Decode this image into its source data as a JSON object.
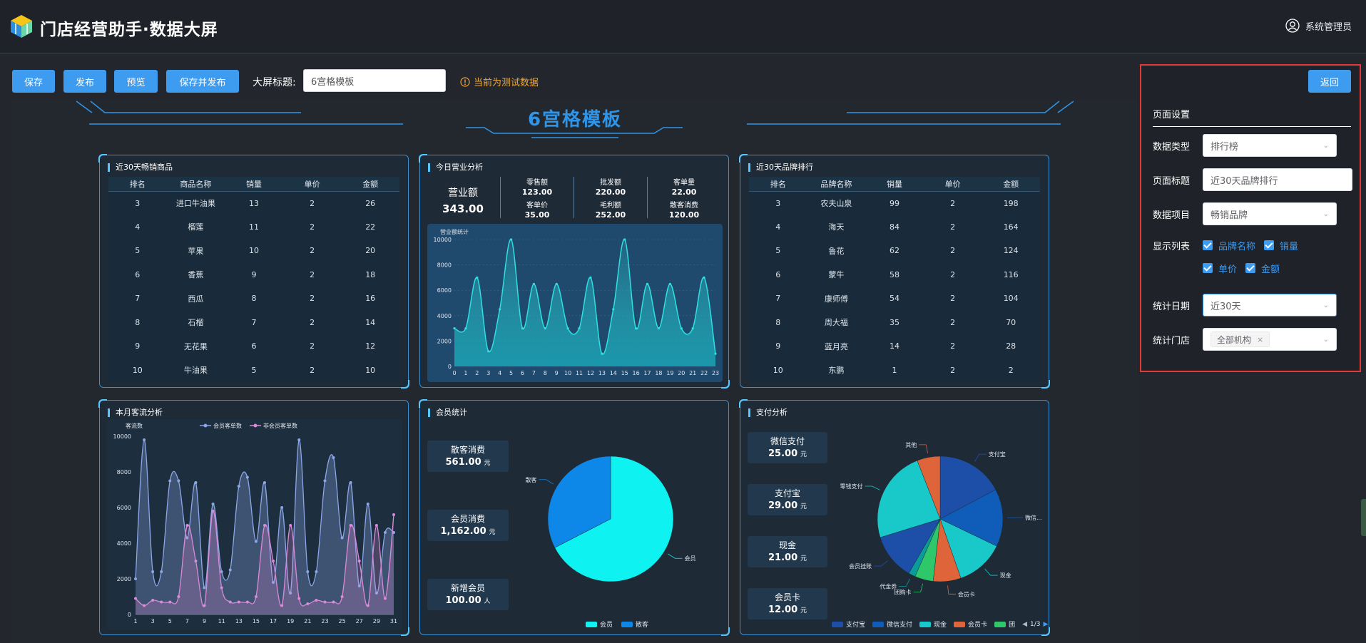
{
  "header": {
    "title": "门店经营助手·数据大屏",
    "user": "系统管理员"
  },
  "toolbar": {
    "buttons": [
      "保存",
      "发布",
      "预览",
      "保存并发布"
    ],
    "title_label": "大屏标题:",
    "title_value": "6宫格模板",
    "notice": "当前为测试数据"
  },
  "screen": {
    "title": "6宫格模板"
  },
  "panel_hot": {
    "title": "近30天畅销商品",
    "columns": [
      "排名",
      "商品名称",
      "销量",
      "单价",
      "金额"
    ],
    "rows": [
      [
        "3",
        "进口牛油果",
        "13",
        "2",
        "26"
      ],
      [
        "4",
        "榴莲",
        "11",
        "2",
        "22"
      ],
      [
        "5",
        "苹果",
        "10",
        "2",
        "20"
      ],
      [
        "6",
        "香蕉",
        "9",
        "2",
        "18"
      ],
      [
        "7",
        "西瓜",
        "8",
        "2",
        "16"
      ],
      [
        "8",
        "石榴",
        "7",
        "2",
        "14"
      ],
      [
        "9",
        "无花果",
        "6",
        "2",
        "12"
      ],
      [
        "10",
        "牛油果",
        "5",
        "2",
        "10"
      ]
    ]
  },
  "panel_revenue": {
    "title": "今日营业分析",
    "main_label": "营业额",
    "main_value": "343.00",
    "kpis": [
      {
        "label": "零售额",
        "value": "123.00"
      },
      {
        "label": "批发额",
        "value": "220.00"
      },
      {
        "label": "客单量",
        "value": "22.00"
      },
      {
        "label": "客单价",
        "value": "35.00"
      },
      {
        "label": "毛利额",
        "value": "252.00"
      },
      {
        "label": "散客消费",
        "value": "120.00"
      }
    ],
    "chart_title": "营业额统计"
  },
  "panel_brand": {
    "title": "近30天品牌排行",
    "columns": [
      "排名",
      "品牌名称",
      "销量",
      "单价",
      "金额"
    ],
    "rows": [
      [
        "3",
        "农夫山泉",
        "99",
        "2",
        "198"
      ],
      [
        "4",
        "海天",
        "84",
        "2",
        "164"
      ],
      [
        "5",
        "鲁花",
        "62",
        "2",
        "124"
      ],
      [
        "6",
        "蒙牛",
        "58",
        "2",
        "116"
      ],
      [
        "7",
        "康师傅",
        "54",
        "2",
        "104"
      ],
      [
        "8",
        "周大福",
        "35",
        "2",
        "70"
      ],
      [
        "9",
        "蓝月亮",
        "14",
        "2",
        "28"
      ],
      [
        "10",
        "东鹏",
        "1",
        "2",
        "2"
      ]
    ]
  },
  "panel_flow": {
    "title": "本月客流分析"
  },
  "panel_member": {
    "title": "会员统计",
    "cards": [
      {
        "label": "散客消费",
        "value": "561.00",
        "unit": "元"
      },
      {
        "label": "会员消费",
        "value": "1,162.00",
        "unit": "元"
      },
      {
        "label": "新增会员",
        "value": "100.00",
        "unit": "人"
      }
    ]
  },
  "panel_pay": {
    "title": "支付分析",
    "cards": [
      {
        "label": "微信支付",
        "value": "25.00",
        "unit": "元"
      },
      {
        "label": "支付宝",
        "value": "29.00",
        "unit": "元"
      },
      {
        "label": "现金",
        "value": "21.00",
        "unit": "元"
      },
      {
        "label": "会员卡",
        "value": "12.00",
        "unit": "元"
      }
    ],
    "legend_page": "1/3"
  },
  "chart_data": [
    {
      "type": "line",
      "title": "营业额统计",
      "x": [
        0,
        1,
        2,
        3,
        4,
        5,
        6,
        7,
        8,
        9,
        10,
        11,
        12,
        13,
        14,
        15,
        16,
        17,
        18,
        19,
        20,
        21,
        22,
        23
      ],
      "series": [
        {
          "values": [
            3000,
            3000,
            7000,
            1200,
            4500,
            10000,
            3000,
            6500,
            3000,
            6500,
            3000,
            3000,
            7000,
            1000,
            4500,
            10000,
            3000,
            6500,
            3000,
            6500,
            3000,
            3000,
            7000,
            1000
          ]
        }
      ],
      "ylim": [
        0,
        10000
      ],
      "yticks": [
        0,
        2000,
        4000,
        6000,
        8000,
        10000
      ],
      "color": "#2fe0e0"
    },
    {
      "type": "line",
      "ylabel": "客流数",
      "x": [
        1,
        2,
        3,
        4,
        5,
        6,
        7,
        8,
        9,
        10,
        11,
        12,
        13,
        14,
        15,
        16,
        17,
        18,
        19,
        20,
        21,
        22,
        23,
        24,
        25,
        26,
        27,
        28,
        29,
        30,
        31
      ],
      "xticks": [
        1,
        3,
        5,
        7,
        9,
        11,
        13,
        15,
        17,
        19,
        21,
        23,
        25,
        27,
        29,
        31
      ],
      "ylim": [
        0,
        10000
      ],
      "yticks": [
        0,
        2000,
        4000,
        6000,
        8000,
        10000
      ],
      "series": [
        {
          "name": "会员客单数",
          "color": "#8ba7e8",
          "values": [
            2000,
            9800,
            2400,
            2400,
            7500,
            7500,
            4300,
            7400,
            1500,
            6200,
            2400,
            2500,
            7200,
            7700,
            4100,
            7400,
            1800,
            6000,
            1200,
            9800,
            2400,
            2400,
            7500,
            8800,
            4300,
            7400,
            1600,
            6200,
            1200,
            4600,
            4600
          ]
        },
        {
          "name": "非会员客单数",
          "color": "#d98ad8",
          "values": [
            900,
            500,
            800,
            700,
            700,
            1000,
            5000,
            3000,
            500,
            5800,
            1500,
            700,
            700,
            700,
            1000,
            5000,
            3000,
            500,
            5000,
            900,
            600,
            800,
            700,
            700,
            1000,
            5000,
            3000,
            500,
            5000,
            900,
            5600
          ]
        }
      ]
    },
    {
      "type": "pie",
      "series": [
        {
          "name": "会员",
          "value": 1162,
          "color": "#0ff2f2"
        },
        {
          "name": "散客",
          "value": 561,
          "color": "#0d87e8"
        }
      ]
    },
    {
      "type": "pie",
      "series": [
        {
          "name": "支付宝",
          "value": 29,
          "color": "#1e4fa8"
        },
        {
          "name": "微信支付",
          "value": 25,
          "color": "#0f5db8"
        },
        {
          "name": "现金",
          "value": 21,
          "color": "#19c8c8"
        },
        {
          "name": "会员卡",
          "value": 12,
          "color": "#e0643a"
        },
        {
          "name": "代金券",
          "value": 8,
          "color": "#2ec86a"
        },
        {
          "name": "团购卡",
          "value": 3,
          "color": "#0a9b9b"
        },
        {
          "name": "会员挂账",
          "value": 20,
          "color": "#1e4fa8"
        },
        {
          "name": "零钱支付",
          "value": 40,
          "color": "#19c8c8"
        },
        {
          "name": "其他",
          "value": 10,
          "color": "#e0643a"
        }
      ],
      "labels_shown": [
        "支付宝",
        "微信...",
        "现金",
        "会员卡",
        "团购卡",
        "代金券",
        "会员挂账",
        "零钱支付",
        "其他"
      ],
      "legend_shown": [
        "支付宝",
        "微信支付",
        "现金",
        "会员卡",
        "团"
      ]
    }
  ],
  "sidebar": {
    "back": "返回",
    "section": "页面设置",
    "fields": [
      {
        "label": "数据类型",
        "value": "排行榜"
      },
      {
        "label": "页面标题",
        "value": "近30天品牌排行"
      },
      {
        "label": "数据项目",
        "value": "畅销品牌"
      },
      {
        "label": "显示列表",
        "options": [
          "品牌名称",
          "销量",
          "单价",
          "金额"
        ]
      },
      {
        "label": "统计日期",
        "value": "近30天"
      },
      {
        "label": "统计门店",
        "value": "全部机构"
      }
    ]
  }
}
